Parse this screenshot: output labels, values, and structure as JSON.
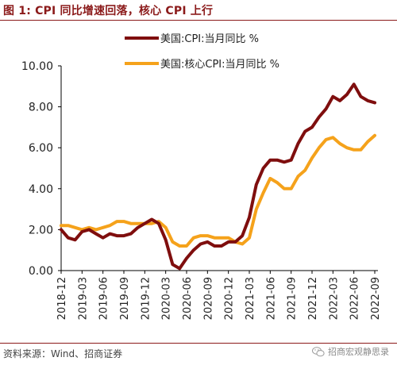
{
  "header": {
    "title": "图 1:  CPI 同比增速回落，核心 CPI 上行"
  },
  "footer": {
    "source": "资料来源：Wind、招商证券",
    "watermark": "招商宏观静思录"
  },
  "icons": {
    "watermark": "wechat-icon"
  },
  "chart_data": {
    "type": "line",
    "title": "",
    "xlabel": "",
    "ylabel": "",
    "ylim": [
      0,
      10
    ],
    "yticks": [
      "0.00",
      "2.00",
      "4.00",
      "6.00",
      "8.00",
      "10.00"
    ],
    "grid": false,
    "legend_position": "top-left",
    "xticks": [
      "2018-12",
      "2019-03",
      "2019-06",
      "2019-09",
      "2019-12",
      "2020-03",
      "2020-06",
      "2020-09",
      "2020-12",
      "2021-03",
      "2021-06",
      "2021-09",
      "2021-12",
      "2022-03",
      "2022-06",
      "2022-09"
    ],
    "x": [
      "2018-12",
      "2019-01",
      "2019-02",
      "2019-03",
      "2019-04",
      "2019-05",
      "2019-06",
      "2019-07",
      "2019-08",
      "2019-09",
      "2019-10",
      "2019-11",
      "2019-12",
      "2020-01",
      "2020-02",
      "2020-03",
      "2020-04",
      "2020-05",
      "2020-06",
      "2020-07",
      "2020-08",
      "2020-09",
      "2020-10",
      "2020-11",
      "2020-12",
      "2021-01",
      "2021-02",
      "2021-03",
      "2021-04",
      "2021-05",
      "2021-06",
      "2021-07",
      "2021-08",
      "2021-09",
      "2021-10",
      "2021-11",
      "2021-12",
      "2022-01",
      "2022-02",
      "2022-03",
      "2022-04",
      "2022-05",
      "2022-06",
      "2022-07",
      "2022-08",
      "2022-09"
    ],
    "series": [
      {
        "name": "美国:CPI:当月同比 %",
        "color": "#7f0e0e",
        "values": [
          2.0,
          1.6,
          1.5,
          1.9,
          2.0,
          1.8,
          1.6,
          1.8,
          1.7,
          1.7,
          1.8,
          2.1,
          2.3,
          2.5,
          2.3,
          1.5,
          0.3,
          0.1,
          0.6,
          1.0,
          1.3,
          1.4,
          1.2,
          1.2,
          1.4,
          1.4,
          1.7,
          2.6,
          4.2,
          5.0,
          5.4,
          5.4,
          5.3,
          5.4,
          6.2,
          6.8,
          7.0,
          7.5,
          7.9,
          8.5,
          8.3,
          8.6,
          9.1,
          8.5,
          8.3,
          8.2
        ]
      },
      {
        "name": "美国:核心CPI:当月同比 %",
        "color": "#f5a21b",
        "values": [
          2.2,
          2.2,
          2.1,
          2.0,
          2.1,
          2.0,
          2.1,
          2.2,
          2.4,
          2.4,
          2.3,
          2.3,
          2.3,
          2.3,
          2.4,
          2.1,
          1.4,
          1.2,
          1.2,
          1.6,
          1.7,
          1.7,
          1.6,
          1.6,
          1.6,
          1.4,
          1.3,
          1.6,
          3.0,
          3.8,
          4.5,
          4.3,
          4.0,
          4.0,
          4.6,
          4.9,
          5.5,
          6.0,
          6.4,
          6.5,
          6.2,
          6.0,
          5.9,
          5.9,
          6.3,
          6.6
        ]
      }
    ]
  }
}
